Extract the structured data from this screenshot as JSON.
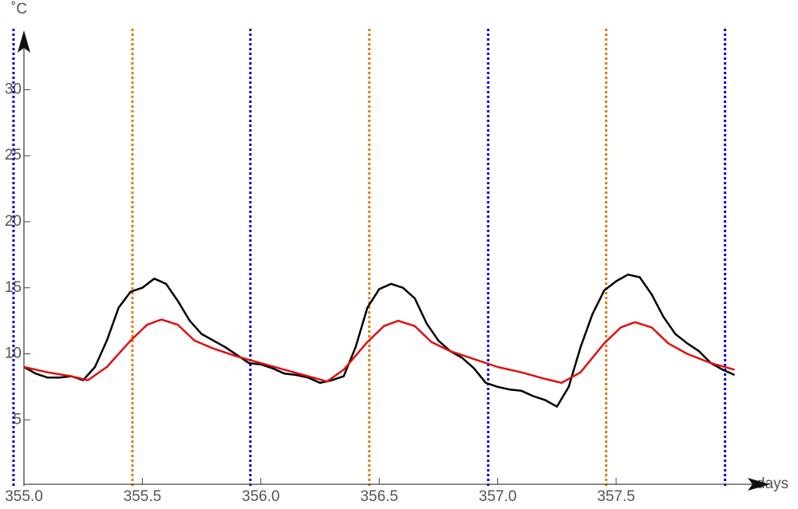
{
  "chart_data": {
    "type": "line",
    "x_label": "days",
    "y_label": "˚C",
    "xlim": [
      355,
      358.15
    ],
    "ylim": [
      0,
      34.5
    ],
    "xticks": [
      {
        "value": 355,
        "label": "355.0"
      },
      355.5,
      {
        "value": 356,
        "label": "356.0"
      },
      356.5,
      {
        "value": 357,
        "label": "357.0"
      },
      357.5
    ],
    "yticks": [
      5,
      10,
      15,
      20,
      25,
      30
    ],
    "vlines": [
      {
        "x": 354.956,
        "color": "#0000cc"
      },
      {
        "x": 355.458,
        "color": "#e07b00"
      },
      {
        "x": 355.956,
        "color": "#0000cc"
      },
      {
        "x": 356.458,
        "color": "#e07b00"
      },
      {
        "x": 356.96,
        "color": "#0000cc"
      },
      {
        "x": 357.458,
        "color": "#e07b00"
      },
      {
        "x": 357.96,
        "color": "#0000cc"
      }
    ],
    "series": [
      {
        "color": "#000000",
        "x": [
          355.0,
          355.05,
          355.1,
          355.15,
          355.2,
          355.25,
          355.3,
          355.35,
          355.4,
          355.45,
          355.5,
          355.55,
          355.6,
          355.65,
          355.7,
          355.75,
          355.8,
          355.85,
          355.9,
          355.95,
          356.0,
          356.05,
          356.1,
          356.15,
          356.2,
          356.25,
          356.3,
          356.35,
          356.4,
          356.45,
          356.5,
          356.55,
          356.6,
          356.65,
          356.7,
          356.75,
          356.8,
          356.85,
          356.9,
          356.95,
          357.0,
          357.05,
          357.1,
          357.15,
          357.2,
          357.25,
          357.3,
          357.35,
          357.4,
          357.45,
          357.5,
          357.55,
          357.6,
          357.65,
          357.7,
          357.75,
          357.8,
          357.85,
          357.9,
          357.95,
          358.0
        ],
        "values": [
          9.0,
          8.5,
          8.2,
          8.2,
          8.3,
          8.0,
          9.0,
          11.0,
          13.5,
          14.7,
          15.0,
          15.7,
          15.3,
          14.0,
          12.5,
          11.5,
          11.0,
          10.5,
          9.9,
          9.3,
          9.2,
          8.9,
          8.5,
          8.4,
          8.2,
          7.8,
          8.0,
          8.3,
          10.5,
          13.5,
          14.9,
          15.3,
          15.0,
          14.2,
          12.3,
          11.0,
          10.2,
          9.7,
          8.9,
          7.8,
          7.5,
          7.3,
          7.2,
          6.8,
          6.5,
          6.0,
          7.5,
          10.5,
          13.0,
          14.8,
          15.5,
          16.0,
          15.8,
          14.5,
          12.8,
          11.5,
          10.8,
          10.2,
          9.3,
          8.8,
          8.4
        ]
      },
      {
        "color": "#e01010",
        "x": [
          355.0,
          355.1,
          355.2,
          355.27,
          355.35,
          355.45,
          355.52,
          355.58,
          355.65,
          355.72,
          355.8,
          355.9,
          356.0,
          356.1,
          356.2,
          356.28,
          356.35,
          356.45,
          356.52,
          356.58,
          356.65,
          356.72,
          356.8,
          356.9,
          357.0,
          357.1,
          357.2,
          357.27,
          357.35,
          357.45,
          357.52,
          357.58,
          357.65,
          357.72,
          357.8,
          357.9,
          358.0
        ],
        "values": [
          9.0,
          8.6,
          8.3,
          8.0,
          9.0,
          11.0,
          12.2,
          12.6,
          12.2,
          11.0,
          10.4,
          9.8,
          9.3,
          8.8,
          8.3,
          7.9,
          8.8,
          10.9,
          12.1,
          12.5,
          12.1,
          10.9,
          10.2,
          9.6,
          9.0,
          8.6,
          8.1,
          7.8,
          8.6,
          10.8,
          12.0,
          12.4,
          12.0,
          10.8,
          10.0,
          9.3,
          8.8
        ]
      }
    ]
  }
}
